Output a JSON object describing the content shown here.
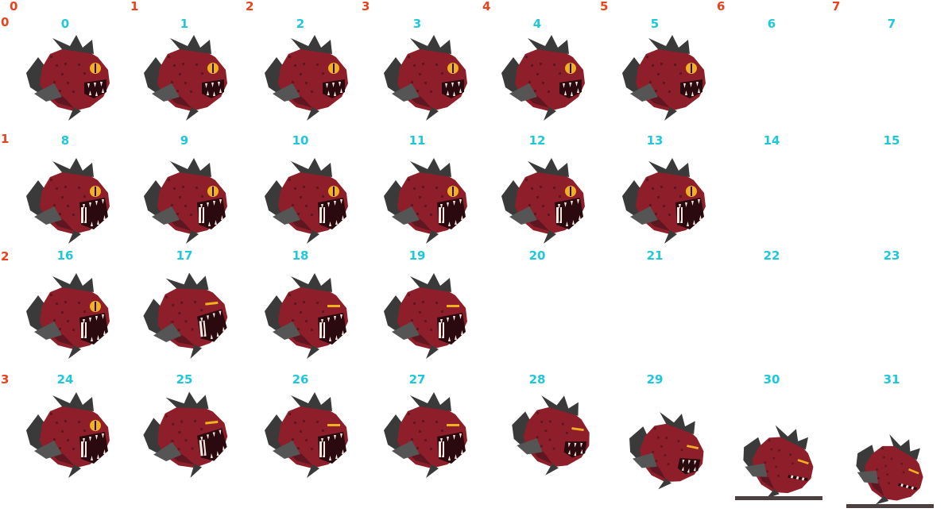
{
  "sheet": {
    "column_labels": [
      "0",
      "1",
      "2",
      "3",
      "4",
      "5",
      "6",
      "7"
    ],
    "row_labels": [
      "0",
      "1",
      "2",
      "3"
    ],
    "frame_labels": [
      "0",
      "1",
      "2",
      "3",
      "4",
      "5",
      "6",
      "7",
      "8",
      "9",
      "10",
      "11",
      "12",
      "13",
      "14",
      "15",
      "16",
      "17",
      "18",
      "19",
      "20",
      "21",
      "22",
      "23",
      "24",
      "25",
      "26",
      "27",
      "28",
      "29",
      "30",
      "31"
    ],
    "colors": {
      "axis_label": "#e8431a",
      "frame_label": "#1fc8d8",
      "body": "#8e1f2a",
      "body_dark": "#5e1620",
      "fin": "#3a3a3a",
      "fin_light": "#555555",
      "eye": "#f0b020",
      "mouth": "#2a0a0e",
      "teeth": "#f4e8e0",
      "ground": "#4a4040"
    },
    "frames": [
      {
        "index": 0,
        "state": "idle",
        "eye": "open",
        "mouth": "open"
      },
      {
        "index": 1,
        "state": "idle",
        "eye": "open",
        "mouth": "open"
      },
      {
        "index": 2,
        "state": "idle",
        "eye": "open",
        "mouth": "open"
      },
      {
        "index": 3,
        "state": "idle",
        "eye": "open",
        "mouth": "open"
      },
      {
        "index": 4,
        "state": "idle",
        "eye": "open",
        "mouth": "open"
      },
      {
        "index": 5,
        "state": "idle",
        "eye": "open",
        "mouth": "open"
      },
      {
        "index": 6,
        "state": "empty"
      },
      {
        "index": 7,
        "state": "empty"
      },
      {
        "index": 8,
        "state": "attack",
        "eye": "open",
        "mouth": "wide"
      },
      {
        "index": 9,
        "state": "attack",
        "eye": "open",
        "mouth": "wide"
      },
      {
        "index": 10,
        "state": "attack",
        "eye": "open",
        "mouth": "wide"
      },
      {
        "index": 11,
        "state": "attack",
        "eye": "open",
        "mouth": "wide"
      },
      {
        "index": 12,
        "state": "attack",
        "eye": "open",
        "mouth": "wide"
      },
      {
        "index": 13,
        "state": "attack",
        "eye": "open",
        "mouth": "wide"
      },
      {
        "index": 14,
        "state": "empty"
      },
      {
        "index": 15,
        "state": "empty"
      },
      {
        "index": 16,
        "state": "hurt",
        "eye": "open",
        "mouth": "wide"
      },
      {
        "index": 17,
        "state": "hurt",
        "eye": "closed",
        "mouth": "wide"
      },
      {
        "index": 18,
        "state": "hurt",
        "eye": "closed",
        "mouth": "wide"
      },
      {
        "index": 19,
        "state": "hurt",
        "eye": "closed",
        "mouth": "wide"
      },
      {
        "index": 20,
        "state": "empty"
      },
      {
        "index": 21,
        "state": "empty"
      },
      {
        "index": 22,
        "state": "empty"
      },
      {
        "index": 23,
        "state": "empty"
      },
      {
        "index": 24,
        "state": "death",
        "eye": "open",
        "mouth": "wide"
      },
      {
        "index": 25,
        "state": "death",
        "eye": "closed",
        "mouth": "wide"
      },
      {
        "index": 26,
        "state": "death",
        "eye": "closed",
        "mouth": "wide"
      },
      {
        "index": 27,
        "state": "death",
        "eye": "closed",
        "mouth": "wide"
      },
      {
        "index": 28,
        "state": "death",
        "eye": "closed",
        "mouth": "open"
      },
      {
        "index": 29,
        "state": "death",
        "eye": "closed",
        "mouth": "open"
      },
      {
        "index": 30,
        "state": "death",
        "eye": "closed",
        "mouth": "closed"
      },
      {
        "index": 31,
        "state": "death",
        "eye": "closed",
        "mouth": "closed"
      }
    ]
  }
}
